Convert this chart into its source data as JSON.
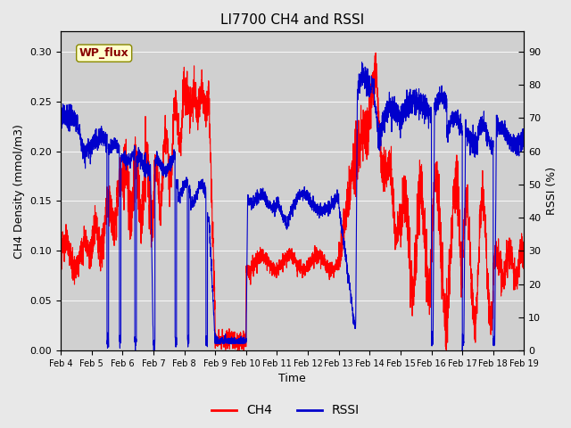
{
  "title": "LI7700 CH4 and RSSI",
  "xlabel": "Time",
  "ylabel_left": "CH4 Density (mmol/m3)",
  "ylabel_right": "RSSI (%)",
  "xlim": [
    0,
    15
  ],
  "ylim_left": [
    0,
    0.32
  ],
  "ylim_right": [
    0,
    96
  ],
  "yticks_left": [
    0.0,
    0.05,
    0.1,
    0.15,
    0.2,
    0.25,
    0.3
  ],
  "yticks_right": [
    0,
    10,
    20,
    30,
    40,
    50,
    60,
    70,
    80,
    90
  ],
  "xtick_positions": [
    0,
    1,
    2,
    3,
    4,
    5,
    6,
    7,
    8,
    9,
    10,
    11,
    12,
    13,
    14,
    15
  ],
  "xtick_labels": [
    "Feb 4",
    "Feb 5",
    "Feb 6",
    "Feb 7",
    "Feb 8",
    "Feb 9",
    "Feb 10",
    "Feb 11",
    "Feb 12",
    "Feb 13",
    "Feb 14",
    "Feb 15",
    "Feb 16",
    "Feb 17",
    "Feb 18",
    "Feb 19"
  ],
  "ch4_color": "#FF0000",
  "rssi_color": "#0000CC",
  "bg_color": "#E8E8E8",
  "plot_bg_color": "#D0D0D0",
  "annotation_text": "WP_flux",
  "annotation_bg": "#FFFFCC",
  "annotation_fg": "#880000",
  "annotation_border": "#888800",
  "legend_labels": [
    "CH4",
    "RSSI"
  ],
  "title_fontsize": 11,
  "axis_label_fontsize": 9,
  "tick_fontsize": 8,
  "legend_fontsize": 10,
  "line_width": 0.8
}
